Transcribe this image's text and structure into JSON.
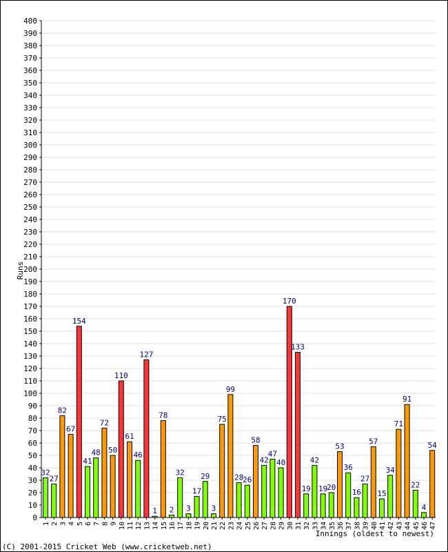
{
  "chart_data": {
    "type": "bar",
    "title": "",
    "xlabel": "Innings (oldest to newest)",
    "ylabel": "Runs",
    "ylim": [
      0,
      400
    ],
    "ytick_step": 10,
    "grid": true,
    "categories": [
      "1",
      "2",
      "3",
      "4",
      "5",
      "6",
      "7",
      "8",
      "9",
      "10",
      "11",
      "12",
      "13",
      "14",
      "15",
      "16",
      "17",
      "18",
      "19",
      "20",
      "21",
      "22",
      "23",
      "24",
      "25",
      "26",
      "27",
      "28",
      "29",
      "30",
      "31",
      "32",
      "33",
      "34",
      "35",
      "36",
      "37",
      "38",
      "39",
      "40",
      "41",
      "42",
      "43",
      "44",
      "45",
      "46",
      "47"
    ],
    "values": [
      32,
      27,
      82,
      67,
      154,
      41,
      48,
      72,
      50,
      110,
      61,
      46,
      127,
      1,
      78,
      2,
      32,
      3,
      17,
      29,
      3,
      75,
      99,
      28,
      26,
      58,
      42,
      47,
      40,
      170,
      133,
      19,
      42,
      19,
      20,
      53,
      36,
      16,
      27,
      57,
      15,
      34,
      71,
      91,
      22,
      4,
      54
    ],
    "color_rule": {
      "under_50": "#80ff00",
      "50_to_99": "#ff9900",
      "100_plus": "#ff3333"
    },
    "label_color": "#000080"
  },
  "footer": {
    "copyright": "(C) 2001-2015 Cricket Web (www.cricketweb.net)"
  }
}
